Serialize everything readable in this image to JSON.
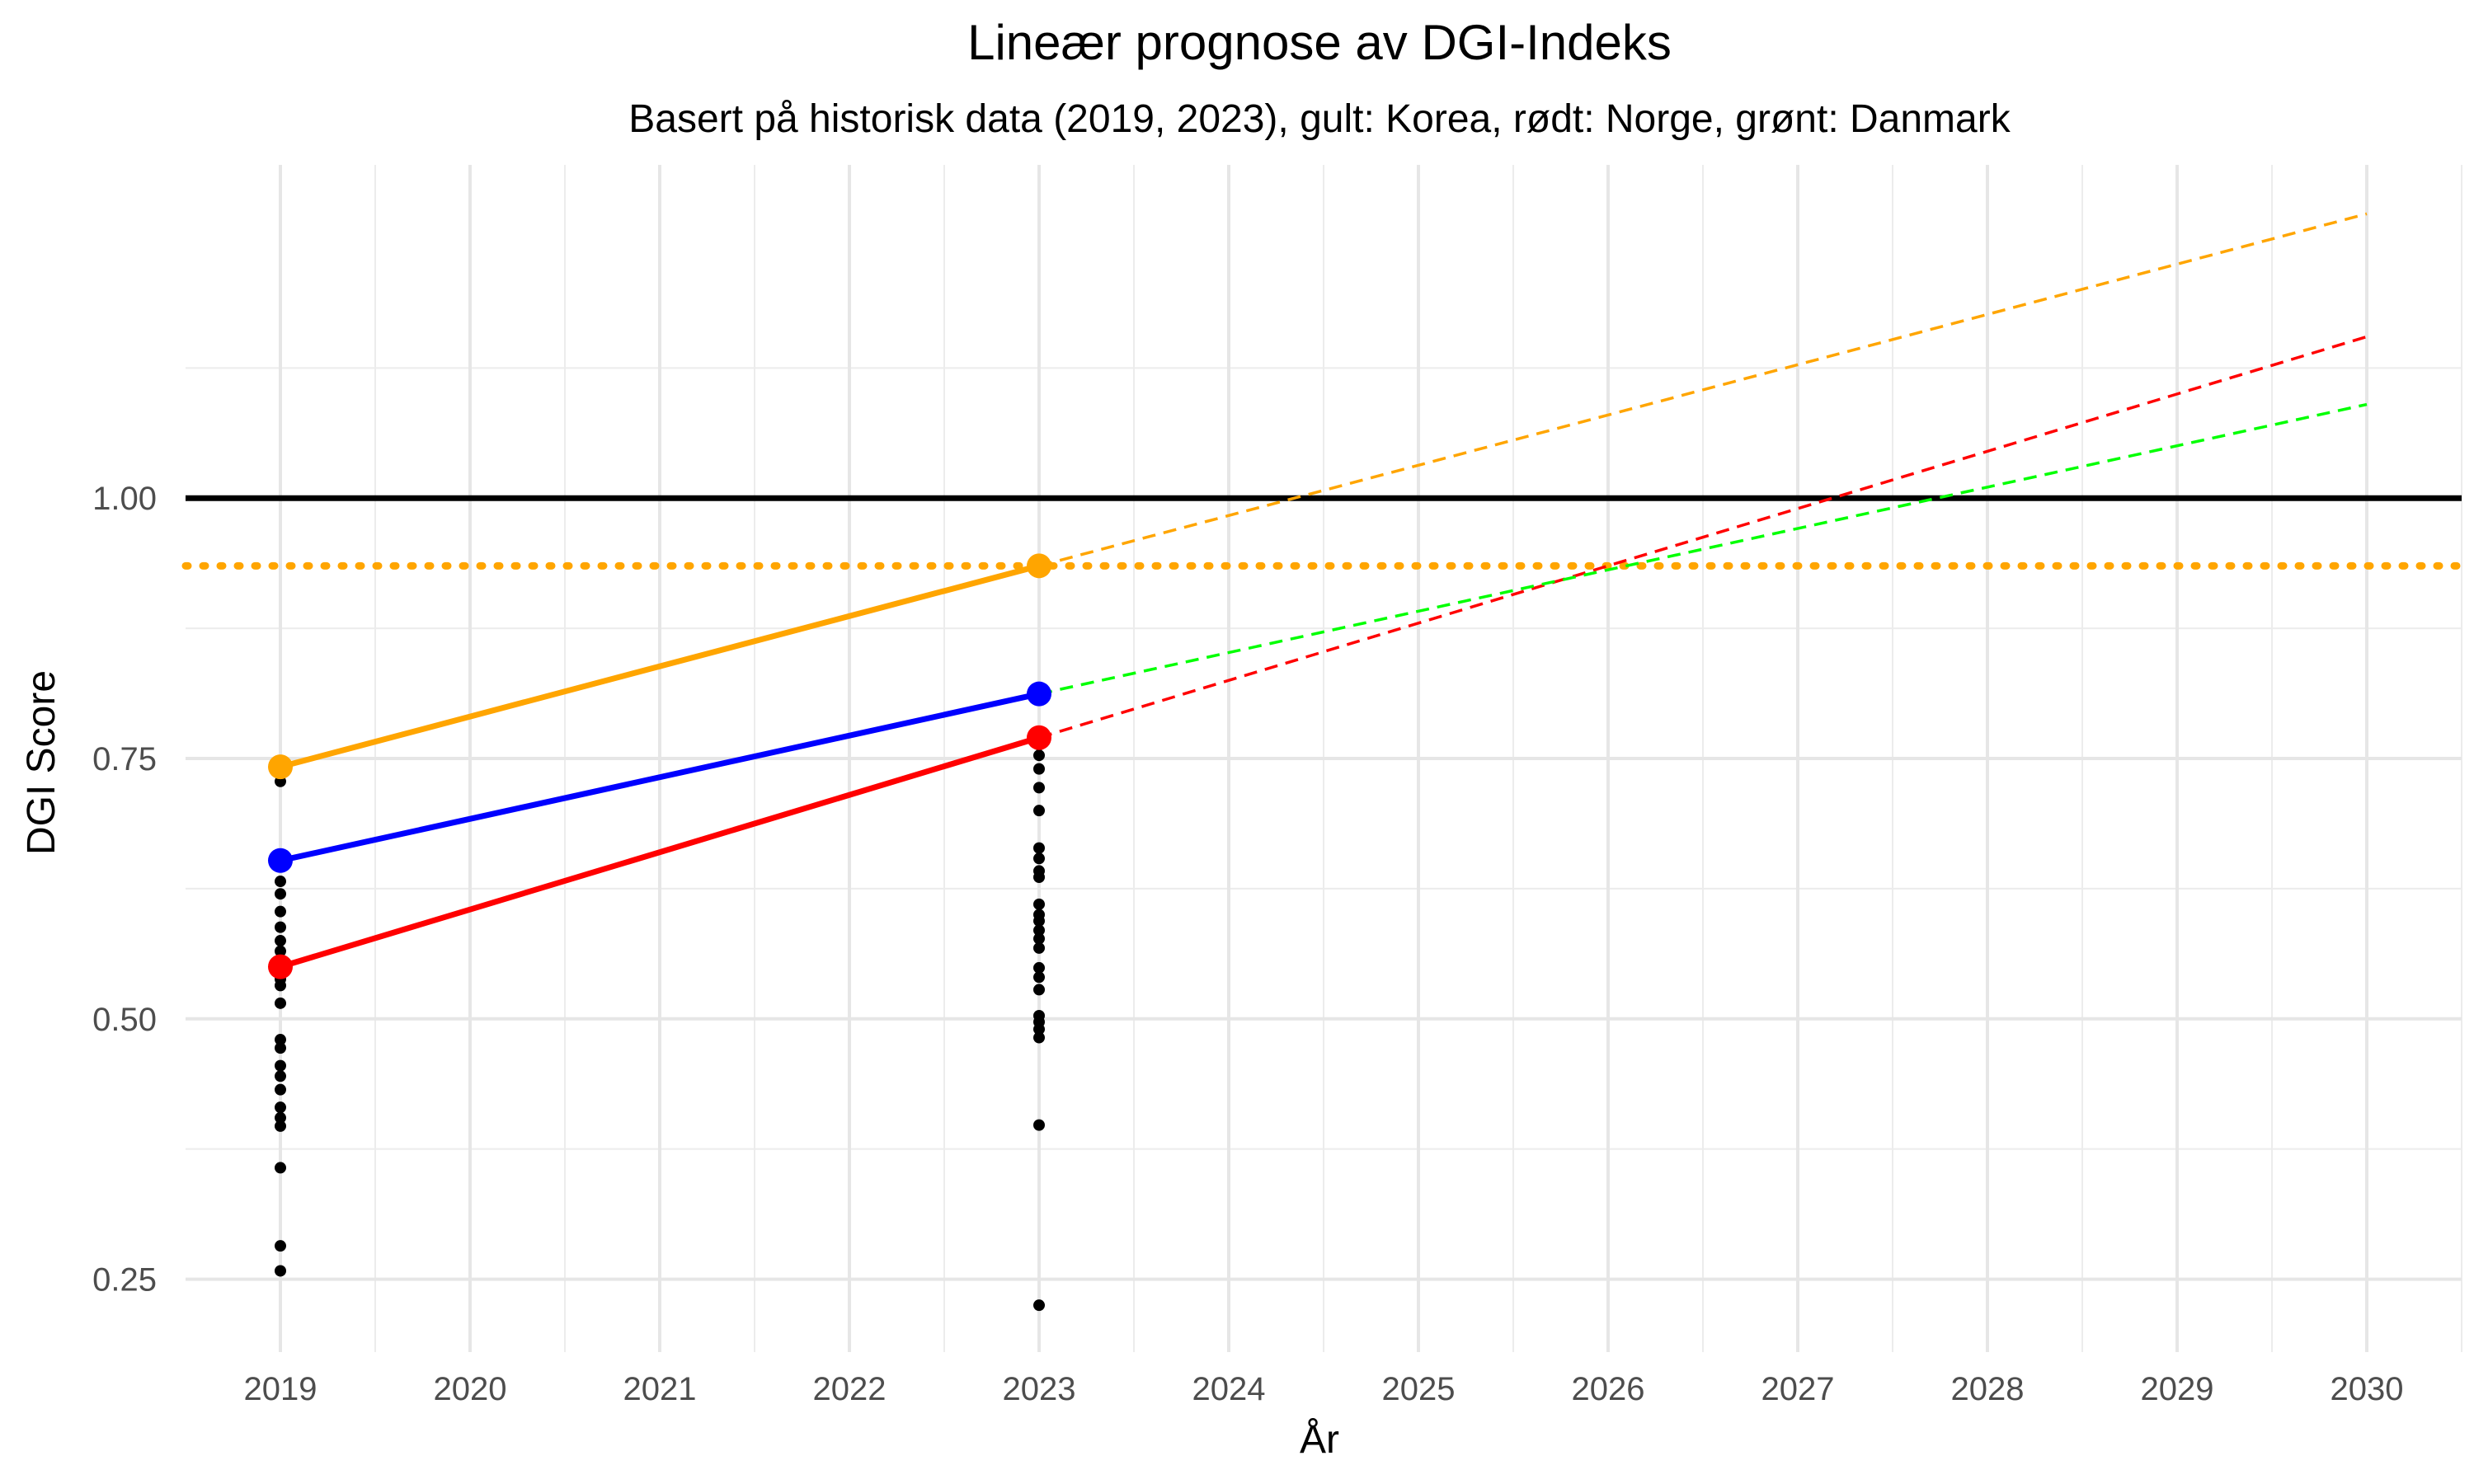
{
  "chart_data": {
    "type": "line",
    "title": "Lineær prognose av DGI-Indeks",
    "subtitle": "Basert på historisk data (2019, 2023), gult: Korea, rødt: Norge, grønt: Danmark",
    "xlabel": "År",
    "ylabel": "DGI Score",
    "xlim": [
      2018.5,
      2030.5
    ],
    "ylim": [
      0.18,
      1.32
    ],
    "x_ticks": [
      2019,
      2020,
      2021,
      2022,
      2023,
      2024,
      2025,
      2026,
      2027,
      2028,
      2029,
      2030
    ],
    "y_ticks": [
      0.25,
      0.5,
      0.75,
      1.0
    ],
    "y_tick_labels": [
      "0.25",
      "0.50",
      "0.75",
      "1.00"
    ],
    "grid": true,
    "legend": "none",
    "series": [
      {
        "color": "#FFA500",
        "x": [
          2019,
          2023
        ],
        "y": [
          0.742,
          0.935
        ]
      },
      {
        "color": "#0000FF",
        "x": [
          2019,
          2023
        ],
        "y": [
          0.652,
          0.812
        ]
      },
      {
        "color": "#FF0000",
        "x": [
          2019,
          2023
        ],
        "y": [
          0.55,
          0.77
        ]
      }
    ],
    "projections": [
      {
        "color": "#FFA500",
        "x": [
          2023,
          2030
        ],
        "y": [
          0.935,
          1.273
        ]
      },
      {
        "color": "#FF0000",
        "x": [
          2023,
          2030
        ],
        "y": [
          0.77,
          1.155
        ]
      },
      {
        "color": "#00FF00",
        "x": [
          2023,
          2030
        ],
        "y": [
          0.812,
          1.09
        ]
      }
    ],
    "reference_lines": [
      {
        "y": 1.0,
        "color": "#000000",
        "style": "solid"
      },
      {
        "y": 0.935,
        "color": "#FFA500",
        "style": "dotted"
      }
    ],
    "scatter": {
      "color": "#000000",
      "points": [
        {
          "x": 2019,
          "y": 0.735
        },
        {
          "x": 2019,
          "y": 0.728
        },
        {
          "x": 2019,
          "y": 0.648
        },
        {
          "x": 2019,
          "y": 0.632
        },
        {
          "x": 2019,
          "y": 0.62
        },
        {
          "x": 2019,
          "y": 0.603
        },
        {
          "x": 2019,
          "y": 0.588
        },
        {
          "x": 2019,
          "y": 0.575
        },
        {
          "x": 2019,
          "y": 0.565
        },
        {
          "x": 2019,
          "y": 0.557
        },
        {
          "x": 2019,
          "y": 0.545
        },
        {
          "x": 2019,
          "y": 0.538
        },
        {
          "x": 2019,
          "y": 0.532
        },
        {
          "x": 2019,
          "y": 0.515
        },
        {
          "x": 2019,
          "y": 0.48
        },
        {
          "x": 2019,
          "y": 0.472
        },
        {
          "x": 2019,
          "y": 0.455
        },
        {
          "x": 2019,
          "y": 0.445
        },
        {
          "x": 2019,
          "y": 0.432
        },
        {
          "x": 2019,
          "y": 0.415
        },
        {
          "x": 2019,
          "y": 0.405
        },
        {
          "x": 2019,
          "y": 0.397
        },
        {
          "x": 2019,
          "y": 0.357
        },
        {
          "x": 2019,
          "y": 0.282
        },
        {
          "x": 2019,
          "y": 0.258
        },
        {
          "x": 2023,
          "y": 0.775
        },
        {
          "x": 2023,
          "y": 0.763
        },
        {
          "x": 2023,
          "y": 0.753
        },
        {
          "x": 2023,
          "y": 0.74
        },
        {
          "x": 2023,
          "y": 0.722
        },
        {
          "x": 2023,
          "y": 0.7
        },
        {
          "x": 2023,
          "y": 0.664
        },
        {
          "x": 2023,
          "y": 0.654
        },
        {
          "x": 2023,
          "y": 0.642
        },
        {
          "x": 2023,
          "y": 0.636
        },
        {
          "x": 2023,
          "y": 0.61
        },
        {
          "x": 2023,
          "y": 0.6
        },
        {
          "x": 2023,
          "y": 0.594
        },
        {
          "x": 2023,
          "y": 0.585
        },
        {
          "x": 2023,
          "y": 0.577
        },
        {
          "x": 2023,
          "y": 0.568
        },
        {
          "x": 2023,
          "y": 0.549
        },
        {
          "x": 2023,
          "y": 0.54
        },
        {
          "x": 2023,
          "y": 0.528
        },
        {
          "x": 2023,
          "y": 0.503
        },
        {
          "x": 2023,
          "y": 0.497
        },
        {
          "x": 2023,
          "y": 0.49
        },
        {
          "x": 2023,
          "y": 0.482
        },
        {
          "x": 2023,
          "y": 0.398
        },
        {
          "x": 2023,
          "y": 0.225
        }
      ]
    }
  }
}
